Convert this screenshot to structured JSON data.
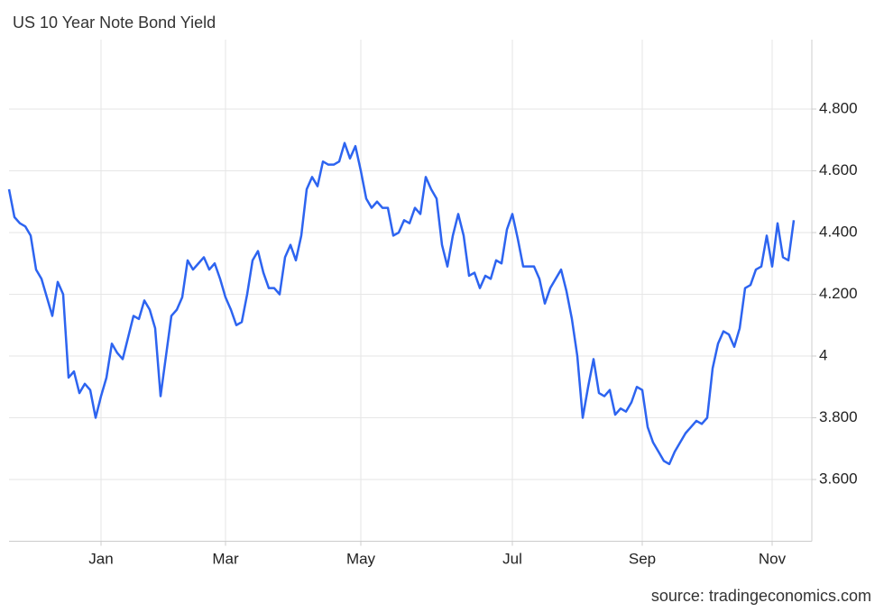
{
  "chart_data": {
    "type": "line",
    "title": "US 10 Year Note Bond Yield",
    "source": "source: tradingeconomics.com",
    "categories": [
      null,
      null,
      null,
      null,
      null,
      null,
      null,
      null,
      null,
      null,
      null,
      null,
      null,
      null,
      null,
      null,
      null,
      "Jan",
      null,
      null,
      null,
      null,
      null,
      null,
      null,
      null,
      null,
      null,
      null,
      null,
      null,
      null,
      null,
      null,
      null,
      null,
      null,
      null,
      null,
      null,
      "Mar",
      null,
      null,
      null,
      null,
      null,
      null,
      null,
      null,
      null,
      null,
      null,
      null,
      null,
      null,
      null,
      null,
      null,
      null,
      null,
      null,
      null,
      null,
      null,
      null,
      "May",
      null,
      null,
      null,
      null,
      null,
      null,
      null,
      null,
      null,
      null,
      null,
      null,
      null,
      null,
      null,
      null,
      null,
      null,
      null,
      null,
      null,
      null,
      null,
      null,
      null,
      null,
      null,
      "Jul",
      null,
      null,
      null,
      null,
      null,
      null,
      null,
      null,
      null,
      null,
      null,
      null,
      null,
      null,
      null,
      null,
      null,
      null,
      null,
      null,
      null,
      null,
      null,
      "Sep",
      null,
      null,
      null,
      null,
      null,
      null,
      null,
      null,
      null,
      null,
      null,
      null,
      null,
      null,
      null,
      null,
      null,
      null,
      null,
      null,
      null,
      null,
      null,
      "Nov",
      null,
      null,
      null,
      null
    ],
    "series": [
      {
        "name": "US 10 Year Note Bond Yield",
        "color": "#2d64f0",
        "values": [
          4.54,
          4.45,
          4.43,
          4.42,
          4.39,
          4.28,
          4.25,
          4.19,
          4.13,
          4.24,
          4.2,
          3.93,
          3.95,
          3.88,
          3.91,
          3.89,
          3.8,
          3.87,
          3.93,
          4.04,
          4.01,
          3.99,
          4.06,
          4.13,
          4.12,
          4.18,
          4.15,
          4.09,
          3.87,
          4.0,
          4.13,
          4.15,
          4.19,
          4.31,
          4.28,
          4.3,
          4.32,
          4.28,
          4.3,
          4.25,
          4.19,
          4.15,
          4.1,
          4.11,
          4.2,
          4.31,
          4.34,
          4.27,
          4.22,
          4.22,
          4.2,
          4.32,
          4.36,
          4.31,
          4.39,
          4.54,
          4.58,
          4.55,
          4.63,
          4.62,
          4.62,
          4.63,
          4.69,
          4.64,
          4.68,
          4.6,
          4.51,
          4.48,
          4.5,
          4.48,
          4.48,
          4.39,
          4.4,
          4.44,
          4.43,
          4.48,
          4.46,
          4.58,
          4.54,
          4.51,
          4.36,
          4.29,
          4.39,
          4.46,
          4.39,
          4.26,
          4.27,
          4.22,
          4.26,
          4.25,
          4.31,
          4.3,
          4.41,
          4.46,
          4.38,
          4.29,
          4.29,
          4.29,
          4.25,
          4.17,
          4.22,
          4.25,
          4.28,
          4.21,
          4.12,
          4.0,
          3.8,
          3.9,
          3.99,
          3.88,
          3.87,
          3.89,
          3.81,
          3.83,
          3.82,
          3.85,
          3.9,
          3.89,
          3.77,
          3.72,
          3.69,
          3.66,
          3.65,
          3.69,
          3.72,
          3.75,
          3.77,
          3.79,
          3.78,
          3.8,
          3.96,
          4.04,
          4.08,
          4.07,
          4.03,
          4.09,
          4.22,
          4.23,
          4.28,
          4.29,
          4.39,
          4.29,
          4.43,
          4.32,
          4.31,
          4.44
        ]
      }
    ],
    "ylim": [
      3.4,
      5.0
    ],
    "yticks": [
      {
        "value": 3.6,
        "label": "3.600"
      },
      {
        "value": 3.8,
        "label": "3.800"
      },
      4,
      {
        "value": 4.2,
        "label": "4.200"
      },
      {
        "value": 4.4,
        "label": "4.400"
      },
      {
        "value": 4.6,
        "label": "4.600"
      },
      {
        "value": 4.8,
        "label": "4.800"
      }
    ],
    "grid": true
  }
}
